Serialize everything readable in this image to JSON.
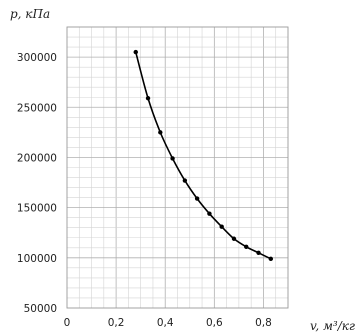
{
  "chart_data": {
    "type": "line",
    "xlabel": "v, м³/кг",
    "ylabel": "p, кПа",
    "xlim": [
      0,
      0.9
    ],
    "ylim": [
      50000,
      330000
    ],
    "x_ticks": [
      "0",
      "0,2",
      "0,4",
      "0,6",
      "0,8"
    ],
    "y_ticks": [
      "50000",
      "100000",
      "150000",
      "200000",
      "250000",
      "300000"
    ],
    "grid": true,
    "series": [
      {
        "x": [
          0.28,
          0.33,
          0.38,
          0.43,
          0.48,
          0.53,
          0.58,
          0.63,
          0.68,
          0.73,
          0.78,
          0.83
        ],
        "y": [
          305000,
          259000,
          225000,
          199000,
          177000,
          159000,
          144000,
          131000,
          119000,
          111000,
          105000,
          99000
        ]
      }
    ]
  }
}
